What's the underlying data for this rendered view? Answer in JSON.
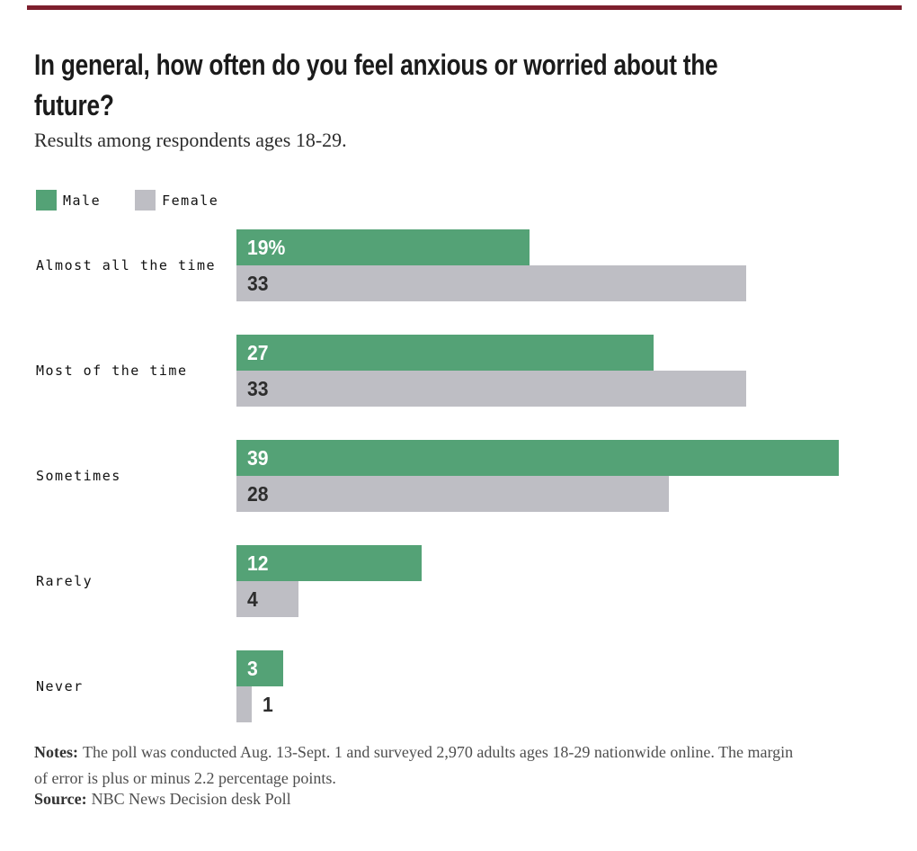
{
  "page": {
    "accent_rule_color": "#7D1F2D",
    "background": "#FFFFFF"
  },
  "header": {
    "title_line1": "In general, how often do you feel anxious or worried about the",
    "title_line2": "future?",
    "subtitle": "Results among respondents ages 18-29."
  },
  "legend": {
    "items": [
      {
        "label": "Male",
        "color": "#54A276"
      },
      {
        "label": "Female",
        "color": "#BEBEC4"
      }
    ]
  },
  "chart_data": {
    "type": "bar",
    "orientation": "horizontal",
    "title": "In general, how often do you feel anxious or worried about the future?",
    "subtitle": "Results among respondents ages 18-29.",
    "categories": [
      "Almost all the time",
      "Most of the time",
      "Sometimes",
      "Rarely",
      "Never"
    ],
    "series": [
      {
        "name": "Male",
        "color": "#54A276",
        "values": [
          19,
          27,
          39,
          12,
          3
        ],
        "value_labels": [
          "19%",
          "27",
          "39",
          "12",
          "3"
        ],
        "label_color": "#FFFFFF"
      },
      {
        "name": "Female",
        "color": "#BEBEC4",
        "values": [
          33,
          33,
          28,
          4,
          1
        ],
        "value_labels": [
          "33",
          "33",
          "28",
          "4",
          "1"
        ],
        "label_color": "#2D2D2D"
      }
    ],
    "xlim": [
      0,
      42
    ],
    "grid": false,
    "axis_ticks_shown": false,
    "legend_position": "top-left",
    "value_labels_inside": true,
    "unit": "percent"
  },
  "footer": {
    "notes_label": "Notes:",
    "notes_text": "The poll was conducted Aug. 13-Sept. 1 and surveyed 2,970 adults ages 18-29 nationwide online. The margin of error is plus or minus 2.2 percentage points.",
    "source_label": "Source:",
    "source_text": "NBC News Decision desk Poll"
  }
}
